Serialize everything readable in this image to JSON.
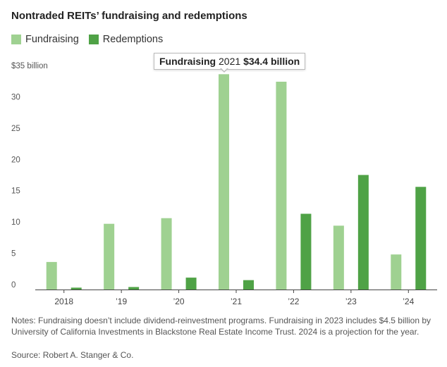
{
  "title": "Nontraded REITs’ fundraising and redemptions",
  "tooltip": {
    "series": "Fundraising",
    "year": "2021",
    "value": "$34.4 billion"
  },
  "notes": "Notes: Fundraising doesn’t include dividend-reinvestment programs. Fundraising in 2023 includes $4.5 billion by University of California Investments in Blackstone Real Estate Income Trust. 2024 is a projection for the year.",
  "source": "Source: Robert A. Stanger & Co.",
  "chart_data": {
    "type": "bar",
    "title": "Nontraded REITs’ fundraising and redemptions",
    "categories": [
      "2018",
      "’19",
      "’20",
      "’21",
      "’22",
      "’23",
      "’24"
    ],
    "series": [
      {
        "name": "Fundraising",
        "color": "#9fd191",
        "values": [
          4.4,
          10.5,
          11.4,
          34.4,
          33.2,
          10.2,
          5.6
        ]
      },
      {
        "name": "Redemptions",
        "color": "#4fa246",
        "values": [
          0.3,
          0.4,
          1.9,
          1.5,
          12.1,
          18.3,
          16.4
        ]
      }
    ],
    "yticks": [
      0,
      5,
      10,
      15,
      20,
      25,
      30,
      35
    ],
    "ytick_labels": [
      "0",
      "5",
      "10",
      "15",
      "20",
      "25",
      "30",
      "$35 billion"
    ],
    "ylim": [
      0,
      35
    ],
    "grid": false,
    "legend": "top-left"
  }
}
